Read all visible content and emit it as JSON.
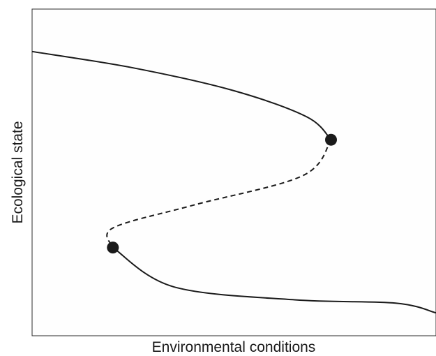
{
  "chart_data": {
    "type": "line",
    "title": "",
    "xlabel": "Environmental conditions",
    "ylabel": "Ecological state",
    "xticks": [],
    "yticks": [],
    "xlim": [
      0,
      1
    ],
    "ylim": [
      0,
      1
    ],
    "grid": false,
    "legend": "none",
    "series": [
      {
        "style": "solid",
        "color": "#1a1a1a",
        "points": [
          [
            0.0,
            0.87
          ],
          [
            0.25,
            0.82
          ],
          [
            0.5,
            0.75
          ],
          [
            0.68,
            0.67
          ],
          [
            0.74,
            0.6
          ]
        ]
      },
      {
        "style": "dashed",
        "color": "#1a1a1a",
        "points": [
          [
            0.74,
            0.6
          ],
          [
            0.67,
            0.49
          ],
          [
            0.4,
            0.4
          ],
          [
            0.2,
            0.33
          ],
          [
            0.2,
            0.27
          ]
        ]
      },
      {
        "style": "solid",
        "color": "#1a1a1a",
        "points": [
          [
            0.2,
            0.27
          ],
          [
            0.35,
            0.15
          ],
          [
            0.65,
            0.11
          ],
          [
            0.9,
            0.1
          ],
          [
            1.0,
            0.07
          ]
        ]
      }
    ],
    "markers": [
      {
        "x": 0.74,
        "y": 0.6,
        "color": "#1a1a1a"
      },
      {
        "x": 0.2,
        "y": 0.27,
        "color": "#1a1a1a"
      }
    ]
  }
}
